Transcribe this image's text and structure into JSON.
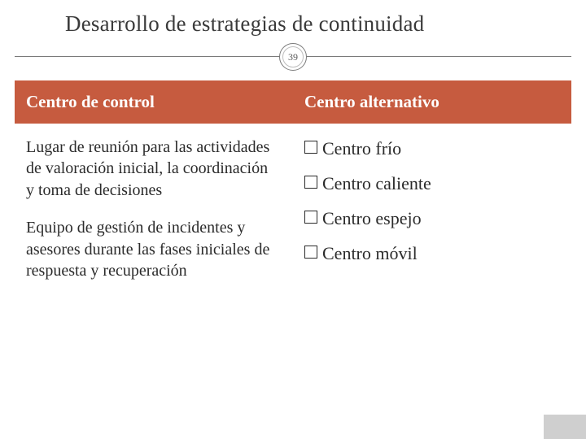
{
  "title": "Desarrollo de estrategias de continuidad",
  "slide_number": "39",
  "colors": {
    "header_bg": "#c65b3f",
    "header_text": "#ffffff",
    "body_text": "#2b2b2b",
    "title_text": "#3a3a3a",
    "divider": "#7a7a7a",
    "corner": "#cfcfcf",
    "background": "#ffffff"
  },
  "typography": {
    "title_fontsize": 27,
    "header_fontsize": 21,
    "body_fontsize": 20,
    "bullet_fontsize": 22,
    "font_family": "Georgia, serif"
  },
  "left": {
    "header": "Centro de control",
    "para1": "Lugar de reunión para las actividades de valoración inicial, la coordinación y toma de decisiones",
    "para2": "Equipo de gestión de incidentes y asesores durante las fases iniciales de respuesta y recuperación"
  },
  "right": {
    "header": "Centro alternativo",
    "items": {
      "0": "Centro frío",
      "1": "Centro caliente",
      "2": "Centro espejo",
      "3": "Centro móvil"
    }
  }
}
